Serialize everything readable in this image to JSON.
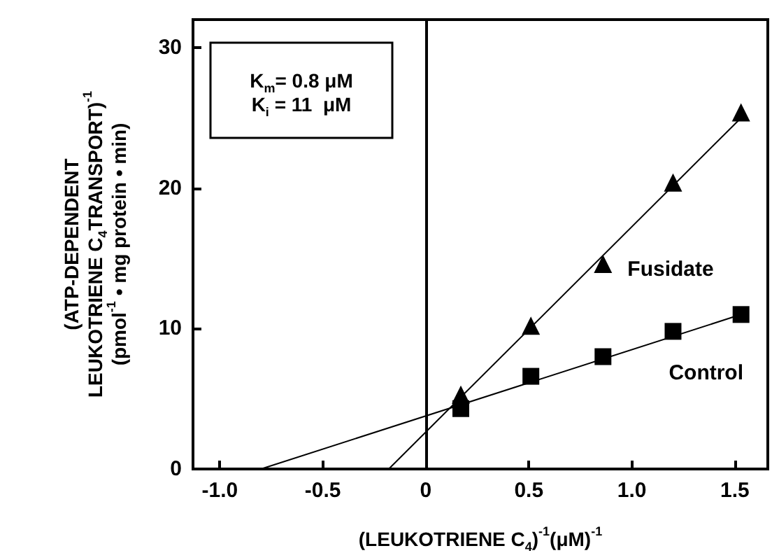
{
  "chart_data": {
    "type": "scatter",
    "xlabel": "(LEUKOTRIENE C$_{4}$)$^{-1}$(μM)$^{-1}$",
    "ylabel": "(ATP-DEPENDENT\nLEUKOTRIENE C$_{4}$TRANSPORT)$^{-1}$\n(pmol$^{-1}$ • mg protein • min)",
    "annotations": [
      "K$_{m}$= 0.8 μM\nK$_{i}$ = 11  μM"
    ],
    "series": [
      {
        "name": "Fusidate",
        "marker": "triangle",
        "color": "#000000",
        "x": [
          0.17,
          0.51,
          0.86,
          1.2,
          1.53
        ],
        "values": [
          5.3,
          10.2,
          14.6,
          20.4,
          25.4
        ]
      },
      {
        "name": "Control",
        "marker": "square",
        "color": "#000000",
        "x": [
          0.17,
          0.51,
          0.86,
          1.2,
          1.53
        ],
        "values": [
          4.3,
          6.6,
          8.0,
          9.8,
          11.0
        ]
      },
      {
        "type": "line",
        "marker": "none",
        "color": "#000000",
        "x": [
          -0.18,
          1.53
        ],
        "values": [
          0,
          25.0
        ]
      },
      {
        "type": "line",
        "marker": "none",
        "color": "#000000",
        "x": [
          -0.8,
          1.53
        ],
        "values": [
          0,
          11.0
        ]
      }
    ],
    "ref_lines": [
      {
        "axis": "x",
        "value": 0,
        "color": "#000000"
      }
    ],
    "xlim": [
      -1.13,
      1.66
    ],
    "ylim": [
      0,
      32
    ],
    "xticks": [
      {
        "value": -1,
        "label": "-1.0"
      },
      {
        "value": -0.5,
        "label": "-0.5"
      },
      0,
      {
        "value": 0.5,
        "label": "0.5"
      },
      {
        "value": 1,
        "label": "1.0"
      },
      {
        "value": 1.5,
        "label": "1.5"
      }
    ],
    "yticks": [
      0,
      10,
      20,
      30
    ],
    "grid": false,
    "legend": false
  }
}
